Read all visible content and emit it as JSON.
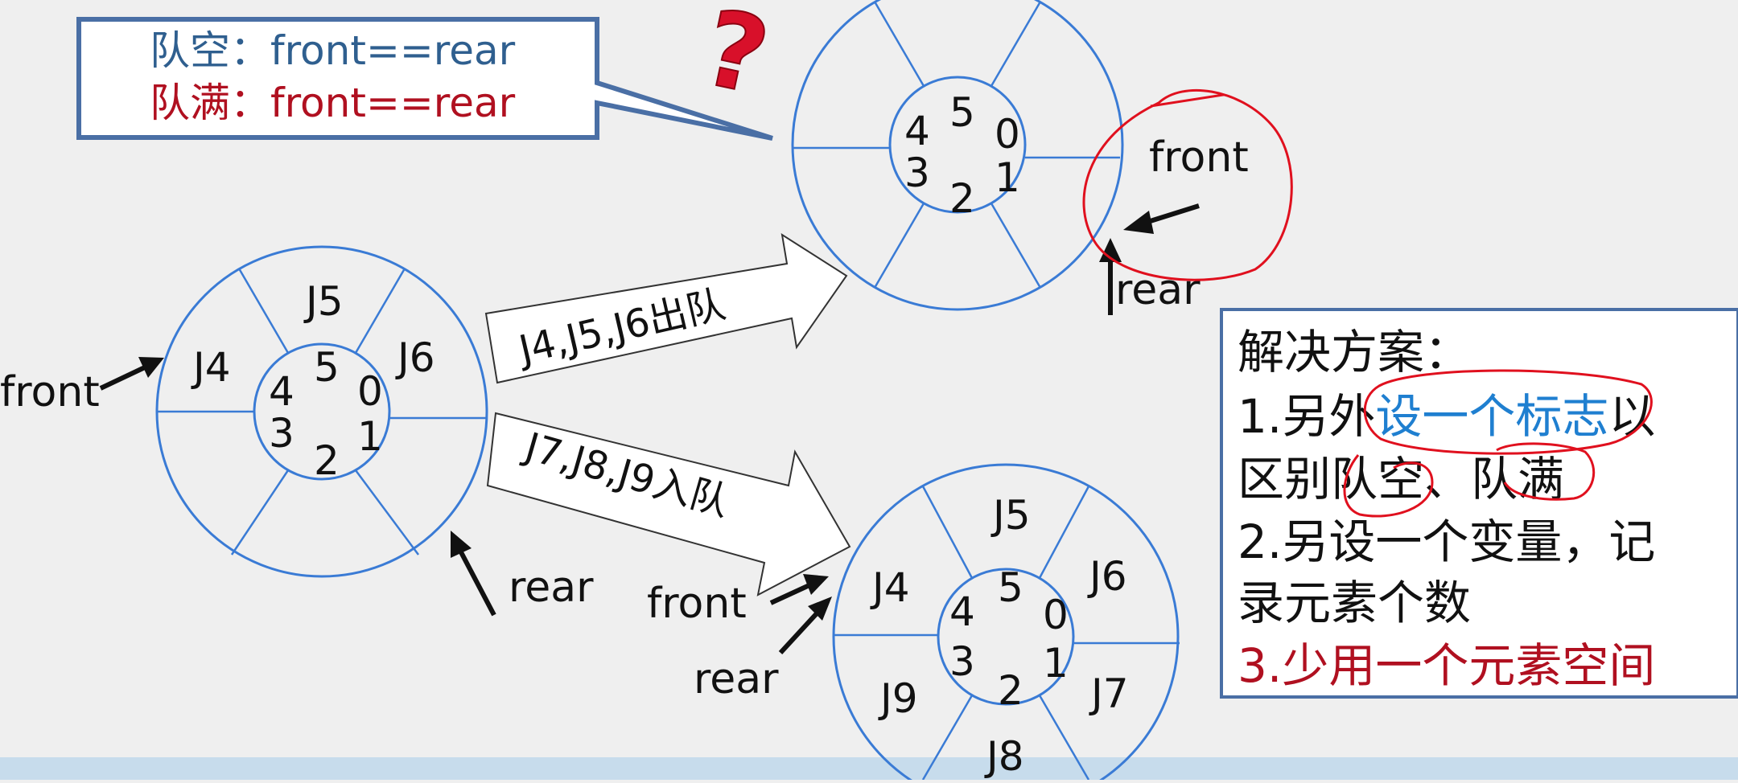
{
  "callout": {
    "empty_line": "队空：front==rear",
    "full_line": "队满：front==rear",
    "question_mark": "?"
  },
  "queue_left": {
    "slots": [
      "J4",
      "J5",
      "J6"
    ],
    "indices": [
      "5",
      "0",
      "1",
      "2",
      "3",
      "4"
    ],
    "front_label": "front",
    "rear_label": "rear"
  },
  "queue_top": {
    "indices": [
      "5",
      "0",
      "1",
      "2",
      "3",
      "4"
    ],
    "front_label": "front",
    "rear_label": "rear"
  },
  "queue_bottom": {
    "slots": [
      "J5",
      "J6",
      "J7",
      "J8",
      "J9",
      "J4"
    ],
    "indices": [
      "5",
      "0",
      "1",
      "2",
      "3",
      "4"
    ],
    "front_label": "front",
    "rear_label": "rear"
  },
  "arrows": {
    "dequeue": "J4,J5,J6出队",
    "enqueue": "J7,J8,J9入队"
  },
  "solution": {
    "title": "解决方案：",
    "item1_prefix": "1.另外",
    "item1_highlight": "设一个标志",
    "item1_suffix": "以",
    "item1_line2": "区别队空、队满",
    "item2_line1": "2.另设一个变量，记",
    "item2_line2": "录元素个数",
    "item3": "3.少用一个元素空间"
  },
  "colors": {
    "blue_text": "#2f5f8f",
    "red_text": "#b01020",
    "circle_blue": "#3a7bd5",
    "annotation_red": "#e0101e",
    "highlight_blue": "#1f7fd0"
  }
}
